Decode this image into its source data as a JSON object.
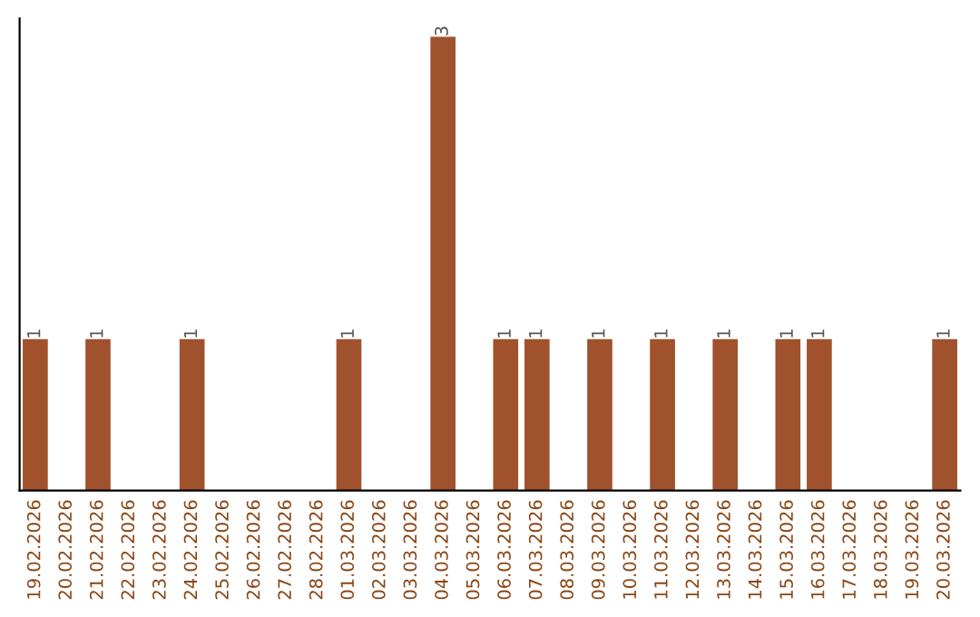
{
  "chart_data": {
    "type": "bar",
    "categories": [
      "19.02.2026",
      "20.02.2026",
      "21.02.2026",
      "22.02.2026",
      "23.02.2026",
      "24.02.2026",
      "25.02.2026",
      "26.02.2026",
      "27.02.2026",
      "28.02.2026",
      "01.03.2026",
      "02.03.2026",
      "03.03.2026",
      "04.03.2026",
      "05.03.2026",
      "06.03.2026",
      "07.03.2026",
      "08.03.2026",
      "09.03.2026",
      "10.03.2026",
      "11.03.2026",
      "12.03.2026",
      "13.03.2026",
      "14.03.2026",
      "15.03.2026",
      "16.03.2026",
      "17.03.2026",
      "18.03.2026",
      "19.03.2026",
      "20.03.2026"
    ],
    "values": [
      1,
      0,
      1,
      0,
      0,
      1,
      0,
      0,
      0,
      0,
      1,
      0,
      0,
      3,
      0,
      1,
      1,
      0,
      1,
      0,
      1,
      0,
      1,
      0,
      1,
      1,
      0,
      0,
      0,
      1
    ],
    "value_labels": [
      "1",
      null,
      "1",
      null,
      null,
      "1",
      null,
      null,
      null,
      null,
      "1",
      null,
      null,
      "3",
      null,
      "1",
      "1",
      null,
      "1",
      null,
      "1",
      null,
      "1",
      null,
      "1",
      "1",
      null,
      null,
      null,
      "1"
    ],
    "color": "#a0522d",
    "tick_labels": "x",
    "grid": false
  }
}
